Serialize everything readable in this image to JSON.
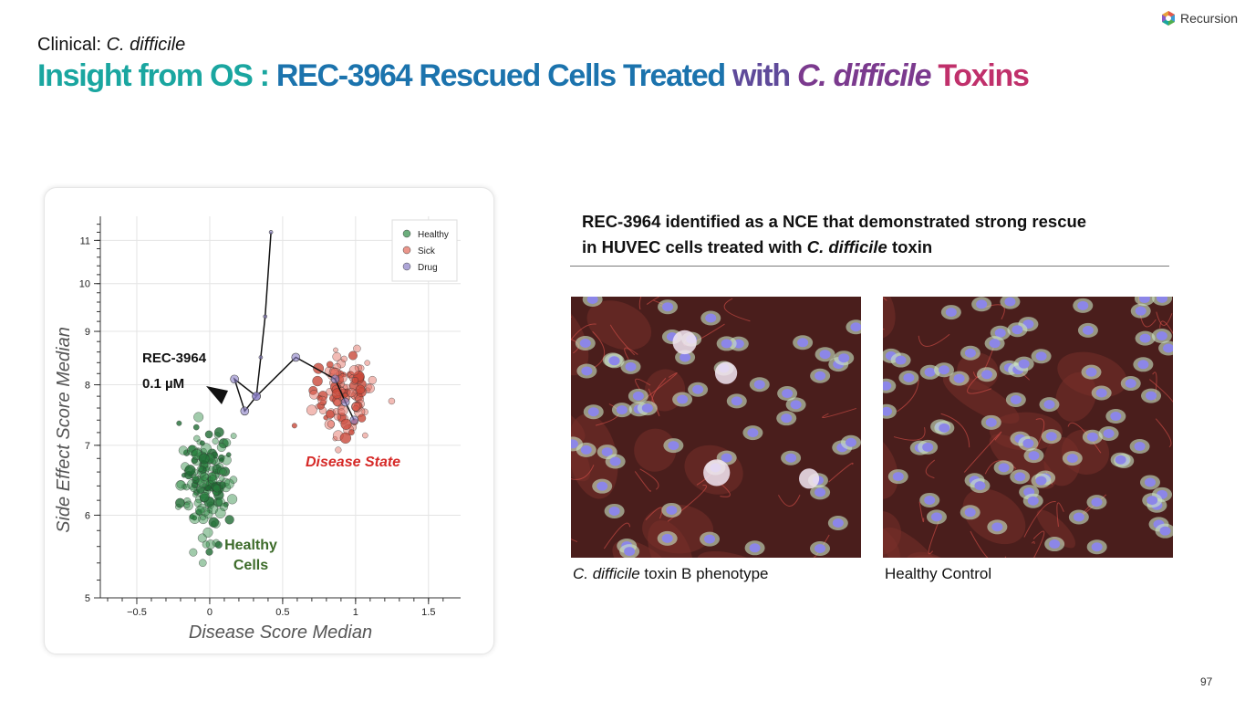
{
  "header": {
    "subtitle_prefix": "Clinical:",
    "subtitle_italic": "C. difficile",
    "title_parts": [
      {
        "text": "Insight from OS : ",
        "color": "#1aa6a0",
        "italic": false
      },
      {
        "text": "REC-3964 Rescued Cells Treated ",
        "color": "#1b73ad",
        "italic": false
      },
      {
        "text": "with ",
        "color": "#5f4a9a",
        "italic": false
      },
      {
        "text": "C. difficile",
        "color": "#7b3a8e",
        "italic": true
      },
      {
        "text": " Toxins",
        "color": "#c0306b",
        "italic": false
      }
    ]
  },
  "logo": {
    "text": "Recursion",
    "icon": "hexagon-logo-icon"
  },
  "headline": {
    "line1": "REC-3964 identified as a NCE that demonstrated strong rescue",
    "line2_prefix": "in HUVEC cells treated with ",
    "line2_italic": "C. difficile",
    "line2_suffix": " toxin"
  },
  "images": {
    "left_caption_italic": "C. difficile",
    "left_caption_rest": " toxin B phenotype",
    "right_caption": "Healthy Control"
  },
  "page_number": "97",
  "colors": {
    "healthy": "#2e8b45",
    "sick": "#e3695a",
    "drug": "#8a7fc6",
    "disease_label": "#d62a28",
    "healthy_label": "#3d6b2a"
  },
  "chart_data": {
    "type": "scatter",
    "xlabel": "Disease Score Median",
    "ylabel": "Side Effect Score Median",
    "xlim": [
      -0.75,
      1.72
    ],
    "ylim": [
      5,
      11.6
    ],
    "y_scale": "log",
    "xticks": [
      -0.5,
      0,
      0.5,
      1,
      1.5
    ],
    "xtick_labels": [
      "−0.5",
      "0",
      "0.5",
      "1",
      "1.5"
    ],
    "yticks": [
      5,
      6,
      7,
      8,
      9,
      10,
      11
    ],
    "ytick_labels": [
      "5",
      "6",
      "7",
      "8",
      "9",
      "10",
      "11"
    ],
    "grid": true,
    "legend": {
      "position": "top-right",
      "entries": [
        {
          "name": "Healthy",
          "color": "#2e8b45"
        },
        {
          "name": "Sick",
          "color": "#e3695a"
        },
        {
          "name": "Drug",
          "color": "#8a7fc6"
        }
      ]
    },
    "annotations": {
      "drug_line1": "REC-3964",
      "drug_line2": "0.1 µM",
      "disease": "Disease State",
      "healthy_line1": "Healthy",
      "healthy_line2": "Cells"
    },
    "clusters": [
      {
        "name": "Healthy",
        "center_x": -0.02,
        "center_y": 6.45,
        "spread_x": 0.09,
        "spread_y": 0.4,
        "count": 160
      },
      {
        "name": "Sick",
        "center_x": 0.92,
        "center_y": 7.85,
        "spread_x": 0.1,
        "spread_y": 0.35,
        "count": 110
      }
    ],
    "drug_path": {
      "name": "Drug",
      "x": [
        0.42,
        0.38,
        0.35,
        0.32,
        0.17,
        0.24,
        0.32,
        0.59,
        0.86,
        0.93,
        0.99
      ],
      "y": [
        11.2,
        9.3,
        8.5,
        7.8,
        8.1,
        7.55,
        7.8,
        8.5,
        8.1,
        7.7,
        7.4
      ]
    }
  }
}
